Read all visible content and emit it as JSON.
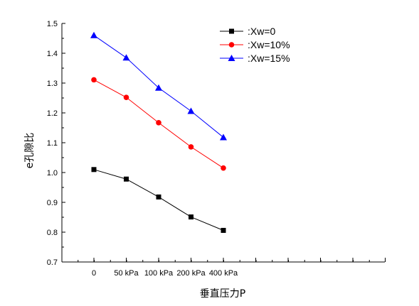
{
  "chart_data": {
    "type": "line",
    "title": "",
    "xlabel": "垂直压力P",
    "ylabel": "e孔隙比",
    "categories": [
      "0",
      "50 kPa",
      "100 kPa",
      "200 kPa",
      "400 kPa"
    ],
    "ylim": [
      0.7,
      1.5
    ],
    "yticks": [
      "0.7",
      "0.8",
      "0.9",
      "1.0",
      "1.1",
      "1.2",
      "1.3",
      "1.4",
      "1.5"
    ],
    "grid": false,
    "legend_position": "top-right",
    "series": [
      {
        "name": ":Xw=0",
        "color": "#000000",
        "marker": "square",
        "values": [
          1.01,
          0.978,
          0.918,
          0.851,
          0.806
        ]
      },
      {
        "name": ":Xw=10%",
        "color": "#ff0000",
        "marker": "circle",
        "values": [
          1.311,
          1.252,
          1.167,
          1.086,
          1.015
        ]
      },
      {
        "name": ":Xw=15%",
        "color": "#0000ff",
        "marker": "triangle",
        "values": [
          1.46,
          1.385,
          1.284,
          1.206,
          1.118
        ]
      }
    ]
  }
}
